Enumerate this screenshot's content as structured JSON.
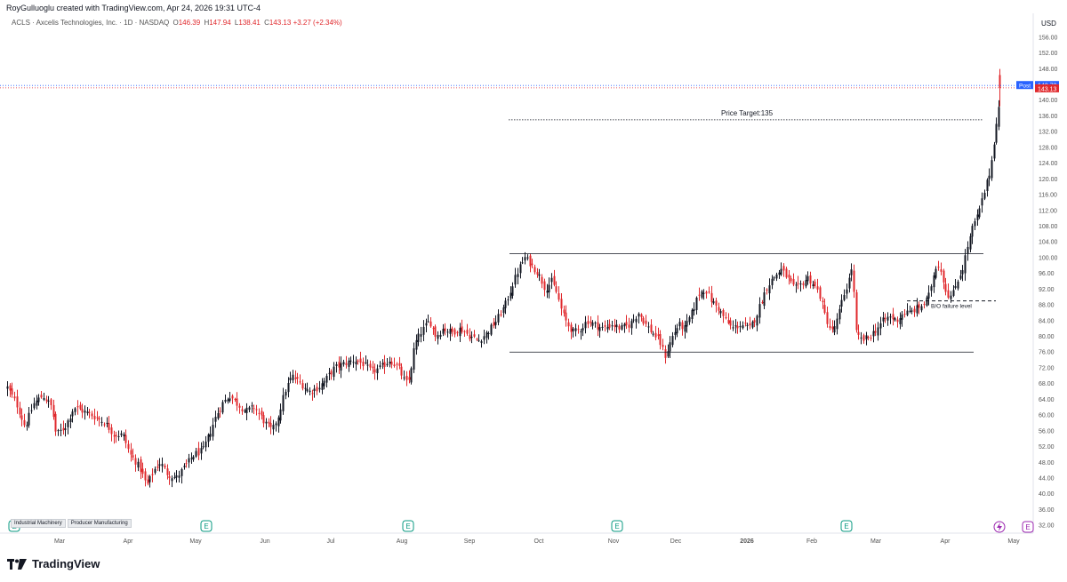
{
  "header": {
    "attribution": "RoyGulluoglu created with TradingView.com, Apr 24, 2026 19:31 UTC-4",
    "symbol_line": "ACLS · Axcelis Technologies, Inc. · 1D · NASDAQ",
    "ohlc": {
      "o_label": "O",
      "o": "146.39",
      "h_label": "H",
      "h": "147.94",
      "l_label": "L",
      "l": "138.41",
      "c_label": "C",
      "c": "143.13",
      "change": "+3.27 (+2.34%)"
    }
  },
  "price_axis": {
    "currency": "USD"
  },
  "price_labels": {
    "post_label": "Post",
    "post_value": "143.73",
    "last_value": "143.13"
  },
  "tags": [
    "Industrial Machinery",
    "Producer Manufacturing"
  ],
  "brand": "TradingView",
  "colors": {
    "up": "#131722",
    "down": "#e0292d",
    "post": "#2962ff"
  },
  "chart_data": {
    "type": "candlestick",
    "y_ticks": [
      32,
      36,
      40,
      44,
      48,
      52,
      56,
      60,
      64,
      68,
      72,
      76,
      80,
      84,
      88,
      92,
      96,
      100,
      104,
      108,
      112,
      116,
      120,
      124,
      128,
      132,
      136,
      140,
      144,
      148,
      152,
      156
    ],
    "ylim": [
      30,
      158
    ],
    "x_ticks": [
      "Mar",
      "Apr",
      "May",
      "Jun",
      "Jul",
      "Aug",
      "Sep",
      "Oct",
      "Nov",
      "Dec",
      "2026",
      "Feb",
      "Mar",
      "Apr",
      "May"
    ],
    "annotations": {
      "price_target_label": "Price Target:135",
      "price_target": 135,
      "resistance": 101,
      "support": 76,
      "bo_failure_label": "B/O failure level",
      "bo_failure": 89
    },
    "close_path": [
      [
        0,
        67
      ],
      [
        10,
        63
      ],
      [
        20,
        57
      ],
      [
        30,
        63
      ],
      [
        40,
        65
      ],
      [
        50,
        62
      ],
      [
        55,
        55
      ],
      [
        65,
        57
      ],
      [
        75,
        62
      ],
      [
        85,
        61
      ],
      [
        95,
        60
      ],
      [
        110,
        58
      ],
      [
        120,
        55
      ],
      [
        130,
        55
      ],
      [
        138,
        50
      ],
      [
        145,
        48
      ],
      [
        150,
        46
      ],
      [
        157,
        42
      ],
      [
        165,
        46
      ],
      [
        172,
        48
      ],
      [
        180,
        45
      ],
      [
        190,
        44
      ],
      [
        200,
        47
      ],
      [
        210,
        50
      ],
      [
        220,
        51
      ],
      [
        227,
        55
      ],
      [
        235,
        60
      ],
      [
        242,
        63
      ],
      [
        250,
        65
      ],
      [
        258,
        63
      ],
      [
        268,
        61
      ],
      [
        278,
        62
      ],
      [
        290,
        58
      ],
      [
        298,
        56
      ],
      [
        305,
        60
      ],
      [
        312,
        66
      ],
      [
        320,
        70
      ],
      [
        330,
        68
      ],
      [
        340,
        66
      ],
      [
        350,
        67
      ],
      [
        358,
        69
      ],
      [
        368,
        72
      ],
      [
        378,
        73
      ],
      [
        390,
        74
      ],
      [
        400,
        73
      ],
      [
        410,
        71
      ],
      [
        420,
        72
      ],
      [
        430,
        74
      ],
      [
        440,
        72
      ],
      [
        448,
        68
      ],
      [
        452,
        69
      ],
      [
        458,
        78
      ],
      [
        465,
        81
      ],
      [
        475,
        84
      ],
      [
        482,
        80
      ],
      [
        490,
        82
      ],
      [
        500,
        81
      ],
      [
        510,
        82
      ],
      [
        520,
        80
      ],
      [
        530,
        79
      ],
      [
        540,
        81
      ],
      [
        550,
        84
      ],
      [
        560,
        88
      ],
      [
        568,
        93
      ],
      [
        575,
        97
      ],
      [
        582,
        100
      ],
      [
        590,
        98
      ],
      [
        597,
        96
      ],
      [
        605,
        92
      ],
      [
        612,
        94
      ],
      [
        618,
        91
      ],
      [
        624,
        86
      ],
      [
        630,
        83
      ],
      [
        637,
        81
      ],
      [
        645,
        82
      ],
      [
        652,
        84
      ],
      [
        660,
        83
      ],
      [
        670,
        82
      ],
      [
        680,
        83
      ],
      [
        690,
        82
      ],
      [
        700,
        83
      ],
      [
        710,
        86
      ],
      [
        718,
        83
      ],
      [
        725,
        81
      ],
      [
        733,
        79
      ],
      [
        740,
        75
      ],
      [
        748,
        80
      ],
      [
        755,
        83
      ],
      [
        762,
        82
      ],
      [
        770,
        86
      ],
      [
        778,
        91
      ],
      [
        785,
        92
      ],
      [
        792,
        89
      ],
      [
        800,
        87
      ],
      [
        808,
        84
      ],
      [
        815,
        82
      ],
      [
        825,
        83
      ],
      [
        835,
        82
      ],
      [
        842,
        85
      ],
      [
        848,
        89
      ],
      [
        855,
        93
      ],
      [
        862,
        95
      ],
      [
        870,
        97
      ],
      [
        877,
        95
      ],
      [
        885,
        92
      ],
      [
        892,
        93
      ],
      [
        900,
        95
      ],
      [
        907,
        93
      ],
      [
        913,
        91
      ],
      [
        920,
        85
      ],
      [
        927,
        81
      ],
      [
        933,
        84
      ],
      [
        940,
        90
      ],
      [
        946,
        94
      ],
      [
        950,
        98
      ],
      [
        955,
        80
      ],
      [
        962,
        79
      ],
      [
        970,
        80
      ],
      [
        978,
        82
      ],
      [
        985,
        84
      ],
      [
        992,
        85
      ],
      [
        1000,
        84
      ],
      [
        1008,
        86
      ],
      [
        1015,
        86
      ],
      [
        1022,
        87
      ],
      [
        1030,
        88
      ],
      [
        1036,
        90
      ],
      [
        1041,
        95
      ],
      [
        1046,
        99
      ],
      [
        1051,
        96
      ],
      [
        1056,
        91
      ],
      [
        1062,
        90
      ],
      [
        1068,
        94
      ],
      [
        1074,
        97
      ],
      [
        1080,
        103
      ],
      [
        1086,
        108
      ],
      [
        1092,
        111
      ],
      [
        1098,
        116
      ],
      [
        1104,
        121
      ],
      [
        1108,
        126
      ],
      [
        1112,
        134
      ],
      [
        1116,
        139
      ],
      [
        1120,
        142
      ],
      [
        1124,
        143
      ]
    ],
    "candle_start_x": 8,
    "candle_end_x": 1124,
    "plot_left_x": 8,
    "plot_right_x": 1140
  }
}
